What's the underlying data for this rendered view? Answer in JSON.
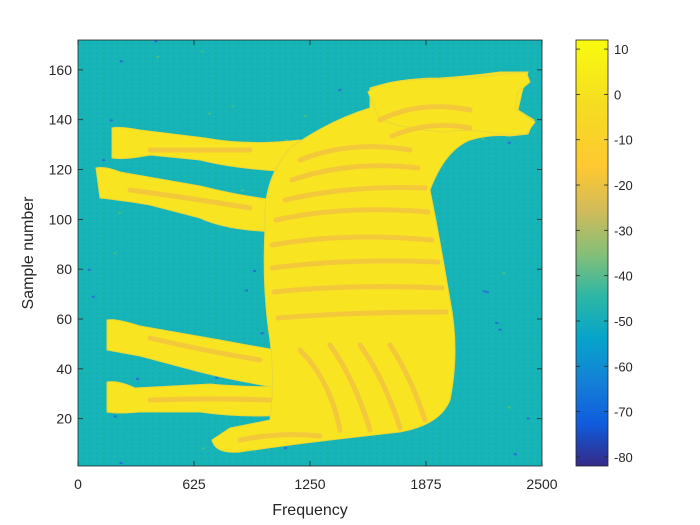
{
  "chart_data": {
    "type": "heatmap",
    "title": "",
    "xlabel": "Frequency",
    "ylabel": "Sample number",
    "xlim": [
      0,
      2500
    ],
    "ylim": [
      1,
      172
    ],
    "x_ticks": [
      "0",
      "625",
      "1250",
      "1875",
      "2500"
    ],
    "x_tick_values": [
      0,
      625,
      1250,
      1875,
      2500
    ],
    "y_ticks": [
      "20",
      "40",
      "60",
      "80",
      "100",
      "120",
      "140",
      "160"
    ],
    "y_tick_values": [
      20,
      40,
      60,
      80,
      100,
      120,
      140,
      160
    ],
    "colorbar": {
      "range": [
        -82,
        12
      ],
      "ticks": [
        "10",
        "0",
        "-10",
        "-20",
        "-30",
        "-40",
        "-50",
        "-60",
        "-70",
        "-80"
      ],
      "tick_values": [
        10,
        0,
        -10,
        -20,
        -30,
        -40,
        -50,
        -60,
        -70,
        -80
      ],
      "colormap": "parula"
    },
    "background_level": -38,
    "foreground_level": 10,
    "colors": {
      "background": "#16b3b7",
      "foreground": "#f9e421",
      "stripe": "#f3c83a",
      "outline": "#e8d73a"
    },
    "grid": false,
    "legend": "colorbar-right"
  }
}
